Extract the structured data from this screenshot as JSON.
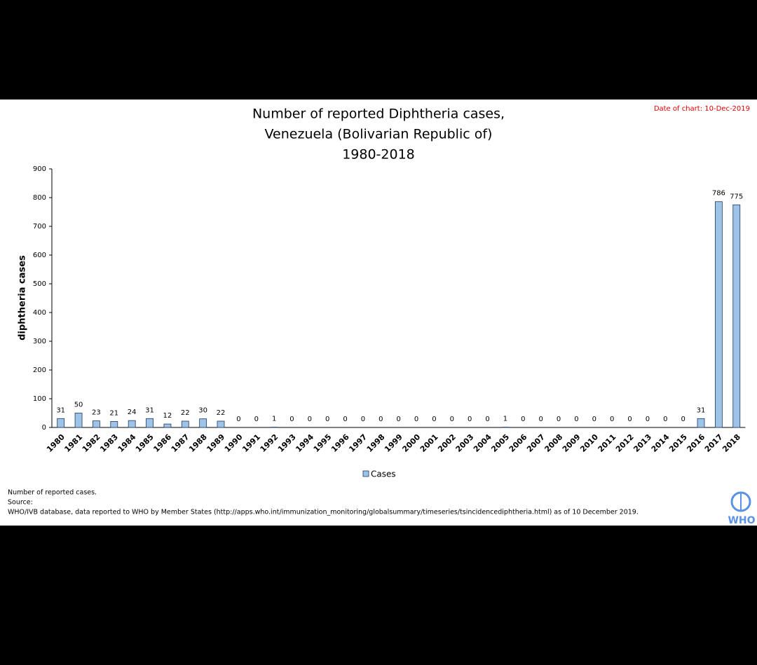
{
  "chart_data": {
    "type": "bar",
    "title": [
      "Number of reported Diphtheria cases,",
      "Venezuela (Bolivarian Republic of)",
      "1980-2018"
    ],
    "date_note": "Date of chart: 10-Dec-2019",
    "y_label": "diphtheria cases",
    "categories": [
      "1980",
      "1981",
      "1982",
      "1983",
      "1984",
      "1985",
      "1986",
      "1987",
      "1988",
      "1989",
      "1990",
      "1991",
      "1992",
      "1993",
      "1994",
      "1995",
      "1996",
      "1997",
      "1998",
      "1999",
      "2000",
      "2001",
      "2002",
      "2003",
      "2004",
      "2005",
      "2006",
      "2007",
      "2008",
      "2009",
      "2010",
      "2011",
      "2012",
      "2013",
      "2014",
      "2015",
      "2016",
      "2017",
      "2018"
    ],
    "series": [
      {
        "name": "Cases",
        "color": "#9dc3e6",
        "values": [
          31,
          50,
          23,
          21,
          24,
          31,
          12,
          22,
          30,
          22,
          0,
          0,
          1,
          0,
          0,
          0,
          0,
          0,
          0,
          0,
          0,
          0,
          0,
          0,
          0,
          1,
          0,
          0,
          0,
          0,
          0,
          0,
          0,
          0,
          0,
          0,
          31,
          786,
          775
        ]
      }
    ],
    "ylim": [
      0,
      900
    ],
    "yticks": [
      0,
      100,
      200,
      300,
      400,
      500,
      600,
      700,
      800,
      900
    ],
    "notes": [
      "Number of reported cases.",
      "Source:",
      "WHO/IVB database, data reported to WHO by Member States (http://apps.who.int/immunization_monitoring/globalsummary/timeseries/tsincidencediphtheria.html) as of 10 December 2019."
    ],
    "logo_text": "WHO"
  }
}
